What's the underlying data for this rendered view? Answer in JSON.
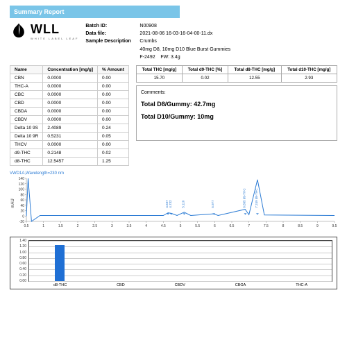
{
  "header": {
    "topbar_text": "Summary Report",
    "logo_main": "WLL",
    "logo_sub": "WHITE LABEL LEAF"
  },
  "meta": {
    "batch_label": "Batch ID:",
    "batch_value": "N00908",
    "datafile_label": "Data file:",
    "datafile_value": "2021-08-06 16-03-16-04-00-11.dx",
    "sampledesc_label": "Sample Description",
    "sampledesc_line1": "Crumbs",
    "sampledesc_line2": "40mg D8, 10mg D10 Blue Burst Gummies",
    "sampledesc_line3a": "F-2492",
    "sampledesc_line3b": "FW: 3.4g"
  },
  "conc_table": {
    "headers": [
      "Name",
      "Concentration [mg/g]",
      "% Amount"
    ],
    "rows": [
      [
        "CBN",
        "0.0000",
        "0.00"
      ],
      [
        "THC-A",
        "0.0000",
        "0.00"
      ],
      [
        "CBC",
        "0.0000",
        "0.00"
      ],
      [
        "CBD",
        "0.0000",
        "0.00"
      ],
      [
        "CBDA",
        "0.0000",
        "0.00"
      ],
      [
        "CBDV",
        "0.0000",
        "0.00"
      ],
      [
        "Delta 10 9S",
        "2.4089",
        "0.24"
      ],
      [
        "Delta 10 9R",
        "0.5231",
        "0.05"
      ],
      [
        "THCV",
        "0.0000",
        "0.00"
      ],
      [
        "d9-THC",
        "0.2148",
        "0.02"
      ],
      [
        "d8-THC",
        "12.5457",
        "1.25"
      ]
    ]
  },
  "totals_table": {
    "headers": [
      "Total THC [mg/g]",
      "Total d9-THC [%]",
      "Total d8-THC [mg/g]",
      "Total d10-THC [mg/g]"
    ],
    "row": [
      "15.70",
      "0.02",
      "12.55",
      "2.93"
    ]
  },
  "comments": {
    "label": "Comments:",
    "line1": "Total D8/Gummy: 42.7mg",
    "line2": "Total D10/Gummy: 10mg"
  },
  "chrom": {
    "title": "VWD1A,Wavelength=230 nm",
    "y_label": "mAU",
    "y_ticks": [
      -20,
      0,
      20,
      40,
      60,
      80,
      100,
      120,
      140
    ],
    "x_ticks": [
      0.5,
      1,
      1.5,
      2,
      2.5,
      3,
      3.5,
      4,
      4.5,
      5,
      5.5,
      6,
      6.5,
      7,
      7.5,
      8,
      8.5,
      9,
      9.5
    ],
    "stroke_color": "#2b7bd4",
    "peaks": [
      {
        "x": 4.637,
        "label": "4.637"
      },
      {
        "x": 4.732,
        "label": "4.732"
      },
      {
        "x": 5.11,
        "label": "5.110"
      },
      {
        "x": 5.977,
        "label": "5.977"
      },
      {
        "x": 6.895,
        "label": "6.895 d9-THC"
      },
      {
        "x": 7.249,
        "label": "7.249 d8-THC"
      }
    ]
  },
  "bar_chart": {
    "y_ticks": [
      "0.00",
      "0.20",
      "0.40",
      "0.60",
      "0.80",
      "1.00",
      "1.20",
      "1.40"
    ],
    "y_max": 1.4,
    "bar_color": "#1f6fd4",
    "grid_color": "#cccccc",
    "categories": [
      "d8-THC",
      "CBD",
      "CBDV",
      "CBGA",
      "THC-A"
    ],
    "values": [
      1.25,
      0,
      0,
      0,
      0
    ]
  }
}
